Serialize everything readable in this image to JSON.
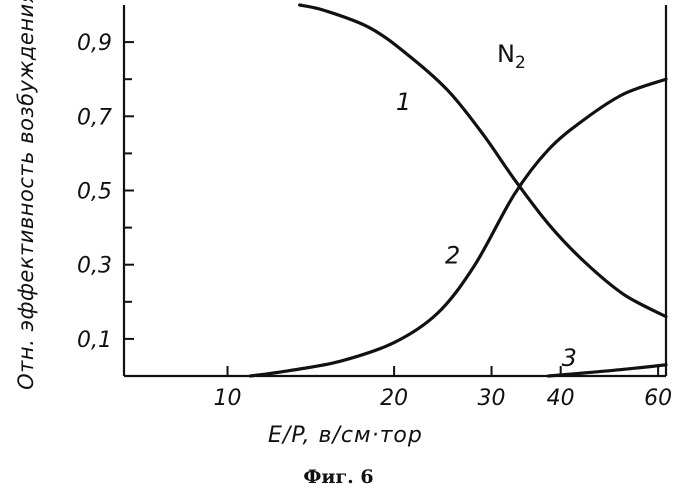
{
  "chart_data": {
    "type": "line",
    "title": "",
    "xlabel": "E/P, в/см·тор",
    "ylabel": "Отн. эффективность возбуждения",
    "xscale": "log",
    "xlim": [
      6.5,
      62
    ],
    "ylim": [
      0,
      1.0
    ],
    "xticks": [
      {
        "value": 10,
        "label": "10"
      },
      {
        "value": 20,
        "label": "20"
      },
      {
        "value": 30,
        "label": "30"
      },
      {
        "value": 40,
        "label": "40"
      },
      {
        "value": 60,
        "label": "60"
      }
    ],
    "yticks": [
      {
        "value": 0.1,
        "label": "0,1"
      },
      {
        "value": 0.3,
        "label": "0,3"
      },
      {
        "value": 0.5,
        "label": "0,5"
      },
      {
        "value": 0.7,
        "label": "0,7"
      },
      {
        "value": 0.9,
        "label": "0,9"
      }
    ],
    "yticks_minor": [
      0.2,
      0.4,
      0.6,
      0.8
    ],
    "series": [
      {
        "name": "1",
        "x": [
          13.5,
          15,
          18,
          21,
          25,
          29,
          33,
          38,
          44,
          52,
          62
        ],
        "y": [
          1.0,
          0.985,
          0.94,
          0.87,
          0.77,
          0.65,
          0.53,
          0.41,
          0.31,
          0.22,
          0.16
        ]
      },
      {
        "name": "2",
        "x": [
          11,
          13,
          16,
          20,
          24,
          28,
          33,
          38,
          44,
          52,
          62
        ],
        "y": [
          0.0,
          0.015,
          0.04,
          0.09,
          0.17,
          0.3,
          0.49,
          0.61,
          0.69,
          0.76,
          0.8
        ]
      },
      {
        "name": "3",
        "x": [
          38,
          44,
          52,
          62
        ],
        "y": [
          0.0,
          0.008,
          0.018,
          0.03
        ]
      }
    ],
    "annotations": [
      {
        "text": "N2"
      }
    ],
    "grid": false,
    "legend": "none"
  },
  "caption": "Фиг. 6",
  "annotation": {
    "main": "N",
    "sub": "2"
  }
}
